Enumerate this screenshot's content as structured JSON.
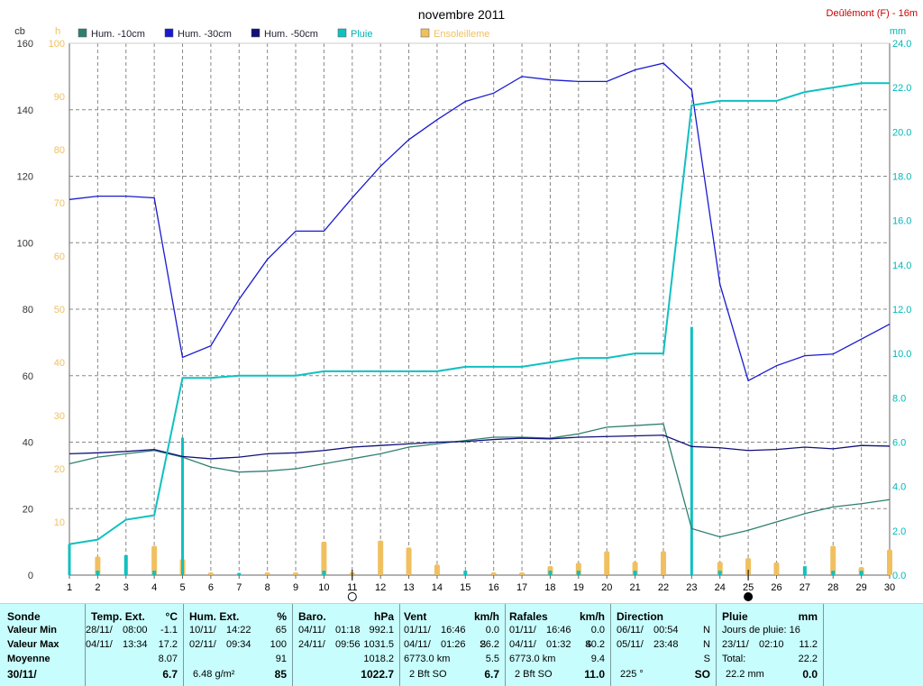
{
  "chart_data": {
    "type": "line",
    "title": "novembre 2011",
    "station": "Deûlémont (F) - 16m",
    "x_ticks": [
      1,
      2,
      3,
      4,
      5,
      6,
      7,
      8,
      9,
      10,
      11,
      12,
      13,
      14,
      15,
      16,
      17,
      18,
      19,
      20,
      21,
      22,
      23,
      24,
      25,
      26,
      27,
      28,
      29,
      30
    ],
    "xlim": [
      1,
      30
    ],
    "axes": {
      "left_cb": {
        "label": "cb",
        "ylim": [
          0,
          160
        ],
        "ticks": [
          0,
          20,
          40,
          60,
          80,
          100,
          120,
          140,
          160
        ],
        "color": "#333333"
      },
      "left_h": {
        "label": "h",
        "ylim": [
          0,
          100
        ],
        "ticks": [
          10,
          20,
          30,
          40,
          50,
          60,
          70,
          80,
          90,
          100
        ],
        "color": "#f0c060"
      },
      "right_mm": {
        "label": "mm",
        "ylim": [
          0,
          24.0
        ],
        "ticks": [
          "0.0",
          "2.0",
          "4.0",
          "6.0",
          "8.0",
          "10.0",
          "12.0",
          "14.0",
          "16.0",
          "18.0",
          "20.0",
          "22.0",
          "24.0"
        ],
        "color": "#00b8b8"
      }
    },
    "series": [
      {
        "name": "Hum. -10cm",
        "color": "#2f7f6f",
        "axis": "left_cb",
        "x": [
          1,
          2,
          3,
          4,
          5,
          6,
          7,
          8,
          9,
          10,
          11,
          12,
          13,
          14,
          15,
          16,
          17,
          18,
          19,
          20,
          21,
          22,
          23,
          24,
          25,
          26,
          27,
          28,
          29,
          30
        ],
        "values": [
          33.5,
          35.5,
          36.5,
          37.5,
          35.5,
          32.5,
          31,
          31.3,
          32,
          33.5,
          35,
          36.5,
          38.5,
          39.5,
          40.5,
          41.5,
          41.5,
          41.2,
          42.5,
          44.5,
          45,
          45.5,
          14,
          11.5,
          13.5,
          16,
          18.5,
          20.5,
          21.5,
          22.7
        ]
      },
      {
        "name": "Hum. -30cm",
        "color": "#1a1ad0",
        "axis": "left_cb",
        "x": [
          1,
          2,
          3,
          4,
          5,
          6,
          7,
          8,
          9,
          10,
          11,
          12,
          13,
          14,
          15,
          16,
          17,
          18,
          19,
          20,
          21,
          22,
          23,
          24,
          25,
          26,
          27,
          28,
          29,
          30
        ],
        "values": [
          113,
          114,
          114,
          113.5,
          65.5,
          69,
          83,
          95,
          103.5,
          103.5,
          113.5,
          123,
          131,
          137,
          142.5,
          145,
          150,
          149,
          148.5,
          148.5,
          152,
          154,
          146,
          87.5,
          58.5,
          63,
          66,
          66.5,
          71,
          75.5
        ]
      },
      {
        "name": "Hum. -50cm",
        "color": "#10107a",
        "axis": "left_cb",
        "x": [
          1,
          2,
          3,
          4,
          5,
          6,
          7,
          8,
          9,
          10,
          11,
          12,
          13,
          14,
          15,
          16,
          17,
          18,
          19,
          20,
          21,
          22,
          23,
          24,
          25,
          26,
          27,
          28,
          29,
          30
        ],
        "values": [
          36.5,
          36.8,
          37.2,
          37.8,
          35.7,
          35,
          35.5,
          36.5,
          36.8,
          37.5,
          38.5,
          39,
          39.5,
          40,
          40.2,
          40.8,
          41.2,
          41,
          41.5,
          41.7,
          41.9,
          42.1,
          38.7,
          38.3,
          37.5,
          37.8,
          38.5,
          38,
          39,
          38.8
        ]
      },
      {
        "name": "Pluie",
        "color": "#10c0c0",
        "axis": "right_mm",
        "cumulative": true,
        "x": [
          1,
          2,
          3,
          4,
          5,
          6,
          7,
          8,
          9,
          10,
          11,
          12,
          13,
          14,
          15,
          16,
          17,
          18,
          19,
          20,
          21,
          22,
          23,
          24,
          25,
          26,
          27,
          28,
          29,
          30
        ],
        "values": [
          1.4,
          1.6,
          2.5,
          2.7,
          8.9,
          8.9,
          9.0,
          9.0,
          9.0,
          9.2,
          9.2,
          9.2,
          9.2,
          9.2,
          9.4,
          9.4,
          9.4,
          9.6,
          9.8,
          9.8,
          10.0,
          10.0,
          21.2,
          21.4,
          21.4,
          21.4,
          21.8,
          22.0,
          22.2,
          22.2
        ],
        "daily_bars": [
          1.4,
          0.2,
          0.9,
          0.2,
          6.2,
          0,
          0.1,
          0,
          0,
          0.2,
          0,
          0,
          0,
          0,
          0.2,
          0,
          0,
          0.2,
          0.2,
          0,
          0.2,
          0,
          11.2,
          0.2,
          0,
          0,
          0.4,
          0.2,
          0.2,
          0
        ]
      },
      {
        "name": "Ensoleilleme",
        "color": "#f0c060",
        "axis": "left_h",
        "type": "bar",
        "x": [
          1,
          2,
          3,
          4,
          5,
          6,
          7,
          8,
          9,
          10,
          11,
          12,
          13,
          14,
          15,
          16,
          17,
          18,
          19,
          20,
          21,
          22,
          23,
          24,
          25,
          26,
          27,
          28,
          29,
          30
        ],
        "values": [
          0,
          3.5,
          0,
          5.5,
          3,
          0.5,
          0,
          0.5,
          0.5,
          6.3,
          0.5,
          6.5,
          5.2,
          2,
          0,
          0.5,
          0.5,
          1.7,
          2.3,
          4.5,
          2.5,
          4.5,
          0,
          2.5,
          3.2,
          2.4,
          0,
          5.5,
          1.5,
          4.8
        ]
      }
    ],
    "markers": [
      {
        "x": 11,
        "symbol": "empty-circle"
      },
      {
        "x": 25,
        "symbol": "filled-circle"
      }
    ],
    "grid": true
  },
  "summary": {
    "rows": [
      "Sonde",
      "Valeur Min",
      "Valeur Max",
      "Moyenne",
      "30/11/"
    ],
    "temp": {
      "title": "Temp. Ext.",
      "unit": "°C",
      "min_date": "28/11/",
      "min_time": "08:00",
      "min": "-1.1",
      "max_date": "04/11/",
      "max_time": "13:34",
      "max": "17.2",
      "avg": "8.07",
      "today": "6.7"
    },
    "hum": {
      "title": "Hum. Ext.",
      "unit": "%",
      "min_date": "10/11/",
      "min_time": "14:22",
      "min": "65",
      "max_date": "02/11/",
      "max_time": "09:34",
      "max": "100",
      "avg": "91",
      "today_extra": "6.48 g/m²",
      "today": "85"
    },
    "baro": {
      "title": "Baro.",
      "unit": "hPa",
      "min_date": "04/11/",
      "min_time": "01:18",
      "min": "992.1",
      "max_date": "24/11/",
      "max_time": "09:56",
      "max": "1031.5",
      "avg": "1018.2",
      "today": "1022.7"
    },
    "vent": {
      "title": "Vent",
      "unit": "km/h",
      "min_date": "01/11/",
      "min_time": "16:46",
      "min": "0.0",
      "max_date": "04/11/",
      "max_time": "01:26",
      "max_dir": "S",
      "max": "26.2",
      "avg_left": "6773.0 km",
      "avg": "5.5",
      "today_left": "2 Bft SO",
      "today": "6.7"
    },
    "rafales": {
      "title": "Rafales",
      "unit": "km/h",
      "min_date": "01/11/",
      "min_time": "16:46",
      "min": "0.0",
      "max_date": "04/11/",
      "max_time": "01:32",
      "max_dir": "S",
      "max": "40.2",
      "avg_left": "6773.0 km",
      "avg": "9.4",
      "today_left": "2 Bft SO",
      "today": "11.0"
    },
    "direction": {
      "title": "Direction",
      "min_date": "06/11/",
      "min_time": "00:54",
      "min": "N",
      "max_date": "05/11/",
      "max_time": "23:48",
      "max": "N",
      "avg": "S",
      "today_left": "225 °",
      "today": "SO"
    },
    "pluie": {
      "title": "Pluie",
      "unit": "mm",
      "min_text": "Jours de pluie: 16",
      "max_date": "23/11/",
      "max_time": "02:10",
      "max": "11.2",
      "avg_label": "Total:",
      "avg": "22.2",
      "today_left": "22.2 mm",
      "today": "0.0"
    }
  }
}
